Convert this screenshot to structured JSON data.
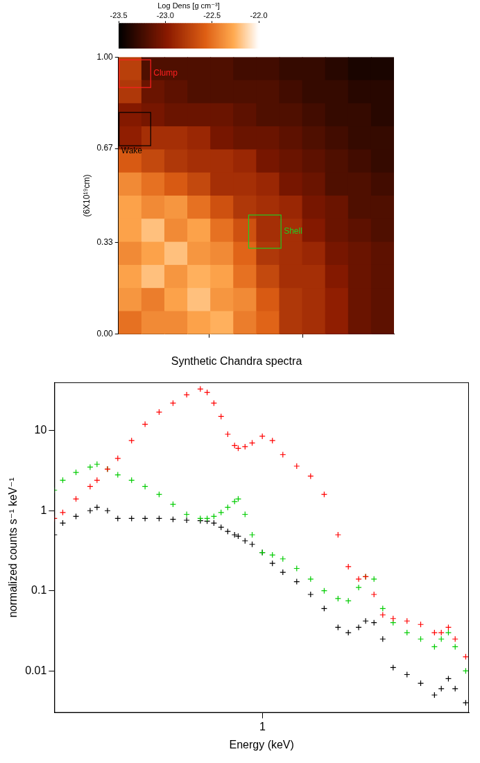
{
  "chart_data": [
    {
      "type": "heatmap",
      "ylabel": "(6X10¹⁹cm)",
      "xlim": [
        0,
        1
      ],
      "ylim": [
        0,
        1
      ],
      "xticks": [
        0.33,
        0.67
      ],
      "yticks": [
        {
          "value": 0,
          "label": "0.00"
        },
        {
          "value": 0.33,
          "label": "0.33"
        },
        {
          "value": 0.67,
          "label": "0.67"
        },
        {
          "value": 1,
          "label": "1.00"
        }
      ],
      "tick_labels": "y",
      "grid": false,
      "cells": [
        [
          -22.75,
          -23.2,
          -23.2,
          -23.2,
          -23.2,
          -23.25,
          -23.25,
          -23.3,
          -23.3,
          -23.35,
          -23.4,
          -23.4
        ],
        [
          -22.8,
          -23.1,
          -23.15,
          -23.2,
          -23.2,
          -23.2,
          -23.2,
          -23.25,
          -23.3,
          -23.3,
          -23.35,
          -23.35
        ],
        [
          -23.0,
          -23.05,
          -23.1,
          -23.1,
          -23.1,
          -23.15,
          -23.2,
          -23.2,
          -23.25,
          -23.3,
          -23.3,
          -23.35
        ],
        [
          -22.95,
          -22.85,
          -22.85,
          -22.9,
          -23.05,
          -23.1,
          -23.1,
          -23.15,
          -23.2,
          -23.25,
          -23.3,
          -23.3
        ],
        [
          -22.6,
          -22.7,
          -22.8,
          -22.85,
          -22.85,
          -22.9,
          -23.05,
          -23.1,
          -23.15,
          -23.2,
          -23.25,
          -23.3
        ],
        [
          -22.4,
          -22.5,
          -22.6,
          -22.7,
          -22.85,
          -22.85,
          -22.9,
          -23.05,
          -23.1,
          -23.2,
          -23.2,
          -23.25
        ],
        [
          -22.3,
          -22.4,
          -22.35,
          -22.5,
          -22.65,
          -22.8,
          -22.85,
          -22.9,
          -23.05,
          -23.1,
          -23.2,
          -23.2
        ],
        [
          -22.3,
          -22.2,
          -22.4,
          -22.3,
          -22.5,
          -22.65,
          -22.85,
          -22.85,
          -23.0,
          -23.1,
          -23.15,
          -23.2
        ],
        [
          -22.4,
          -22.3,
          -22.2,
          -22.35,
          -22.4,
          -22.55,
          -22.8,
          -22.85,
          -22.9,
          -23.05,
          -23.1,
          -23.15
        ],
        [
          -22.3,
          -22.2,
          -22.35,
          -22.25,
          -22.3,
          -22.5,
          -22.7,
          -22.85,
          -22.85,
          -23.0,
          -23.1,
          -23.15
        ],
        [
          -22.35,
          -22.45,
          -22.3,
          -22.2,
          -22.35,
          -22.4,
          -22.6,
          -22.8,
          -22.85,
          -22.95,
          -23.1,
          -23.15
        ],
        [
          -22.5,
          -22.4,
          -22.4,
          -22.3,
          -22.25,
          -22.45,
          -22.55,
          -22.8,
          -22.85,
          -22.95,
          -23.1,
          -23.15
        ]
      ],
      "colorbar": {
        "label": "Log Dens [g cm⁻³]",
        "range": [
          -23.5,
          -22.0
        ],
        "ticks": [
          -23.5,
          {
            "value": -23,
            "label": "-23.0"
          },
          -22.5,
          {
            "value": -22,
            "label": "-22.0"
          }
        ]
      },
      "regions": [
        {
          "label": "Clump",
          "color": "#ff2020",
          "x": [
            0,
            0.117
          ],
          "y": [
            0.89,
            0.99
          ]
        },
        {
          "label": "Wake",
          "color": "#000000",
          "x": [
            0,
            0.117
          ],
          "y": [
            0.68,
            0.8
          ]
        },
        {
          "label": "Shell",
          "color": "#22cc22",
          "x": [
            0.47,
            0.59
          ],
          "y": [
            0.31,
            0.43
          ]
        }
      ]
    },
    {
      "type": "scatter",
      "title": "Synthetic Chandra spectra",
      "xlabel": "Energy (keV)",
      "ylabel": "normalized counts s⁻¹ keV⁻¹",
      "log": true,
      "grid": false,
      "xlim": [
        0.3,
        3.3
      ],
      "xticks": [
        1
      ],
      "ylim": [
        0.003,
        40
      ],
      "yticks": [
        0.01,
        0.1,
        1,
        10
      ],
      "x": [
        0.3,
        0.315,
        0.34,
        0.369,
        0.384,
        0.408,
        0.433,
        0.469,
        0.507,
        0.55,
        0.596,
        0.645,
        0.698,
        0.726,
        0.755,
        0.787,
        0.818,
        0.851,
        0.869,
        0.904,
        0.942,
        0.999,
        1.059,
        1.125,
        1.219,
        1.321,
        1.429,
        1.548,
        1.643,
        1.744,
        1.816,
        1.906,
        2.005,
        2.129,
        2.307,
        2.497,
        2.704,
        2.813,
        2.931,
        3.048,
        3.24
      ],
      "series": [
        {
          "color": "#ff0000",
          "marker": "cross",
          "values": [
            0.8,
            0.95,
            1.4,
            2,
            2.4,
            3.3,
            4.5,
            7.5,
            12,
            17,
            22,
            28,
            33,
            30,
            22,
            15,
            9,
            6.5,
            6,
            6.3,
            7,
            8.5,
            7.5,
            5,
            3.6,
            2.7,
            1.6,
            0.5,
            0.2,
            0.14,
            0.15,
            0.09,
            0.05,
            0.045,
            0.042,
            0.038,
            0.03,
            0.03,
            0.035,
            0.025,
            0.015
          ]
        },
        {
          "color": "#00cc00",
          "marker": "cross",
          "values": [
            1.8,
            2.4,
            3,
            3.5,
            3.8,
            3.3,
            2.8,
            2.4,
            2,
            1.6,
            1.2,
            0.9,
            0.8,
            0.8,
            0.85,
            0.95,
            1.1,
            1.3,
            1.4,
            0.9,
            0.5,
            0.3,
            0.28,
            0.25,
            0.19,
            0.14,
            0.1,
            0.08,
            0.075,
            0.11,
            0.15,
            0.14,
            0.06,
            0.04,
            0.03,
            0.025,
            0.02,
            0.025,
            0.03,
            0.02,
            0.01
          ]
        },
        {
          "color": "#000000",
          "marker": "cross",
          "values": [
            0.5,
            0.7,
            0.85,
            1,
            1.1,
            1,
            0.8,
            0.8,
            0.8,
            0.8,
            0.78,
            0.76,
            0.75,
            0.74,
            0.7,
            0.62,
            0.55,
            0.5,
            0.48,
            0.42,
            0.38,
            0.3,
            0.22,
            0.17,
            0.13,
            0.09,
            0.06,
            0.035,
            0.03,
            0.035,
            0.042,
            0.04,
            0.025,
            0.011,
            0.009,
            0.007,
            0.005,
            0.006,
            0.008,
            0.006,
            0.004
          ]
        }
      ]
    }
  ]
}
